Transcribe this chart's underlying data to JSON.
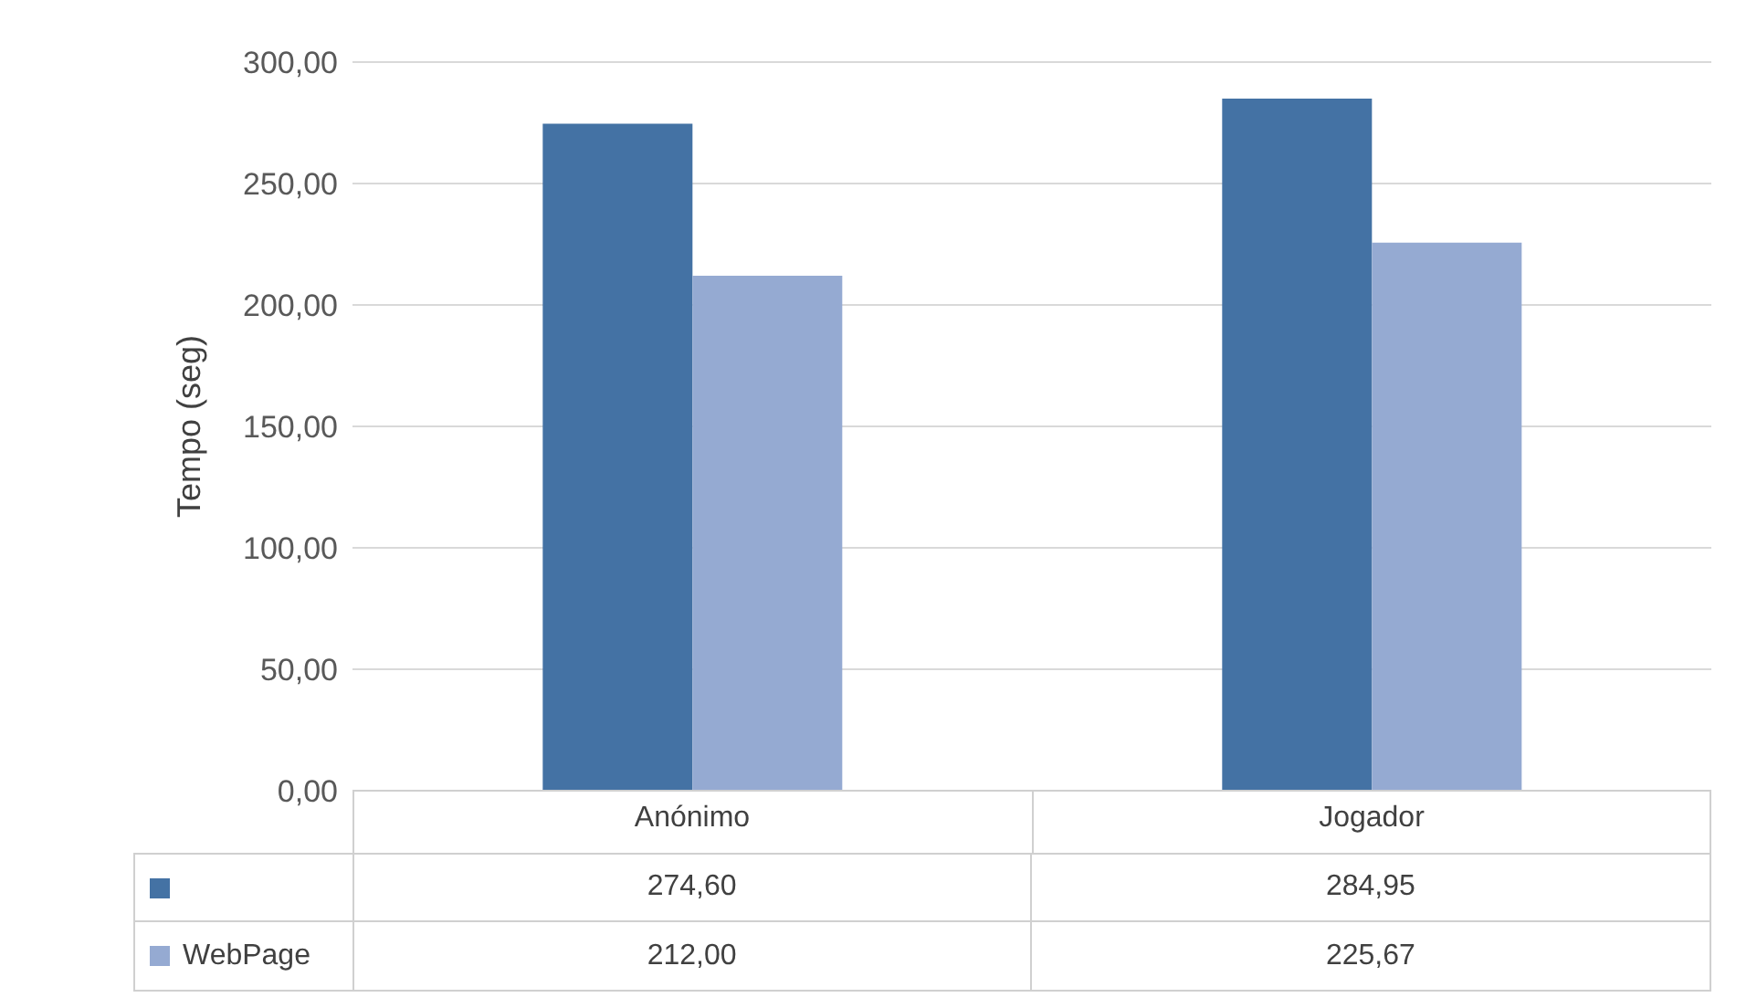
{
  "chart_data": {
    "type": "bar",
    "ylabel": "Tempo (seg)",
    "categories": [
      "Anónimo",
      "Jogador"
    ],
    "series": [
      {
        "color": "#4472a4",
        "values": [
          274.6,
          284.95
        ],
        "value_labels": [
          "274,60",
          "284,95"
        ]
      },
      {
        "name": "WebPage",
        "color": "#95aad2",
        "values": [
          212.0,
          225.67
        ],
        "value_labels": [
          "212,00",
          "225,67"
        ]
      }
    ],
    "ylim": [
      0,
      300
    ],
    "yticks": [
      {
        "value": 0,
        "label": "0,00"
      },
      {
        "value": 50,
        "label": "50,00"
      },
      {
        "value": 100,
        "label": "100,00"
      },
      {
        "value": 150,
        "label": "150,00"
      },
      {
        "value": 200,
        "label": "200,00"
      },
      {
        "value": 250,
        "label": "250,00"
      },
      {
        "value": 300,
        "label": "300,00"
      }
    ],
    "grid": "y",
    "legend": "bottom"
  }
}
